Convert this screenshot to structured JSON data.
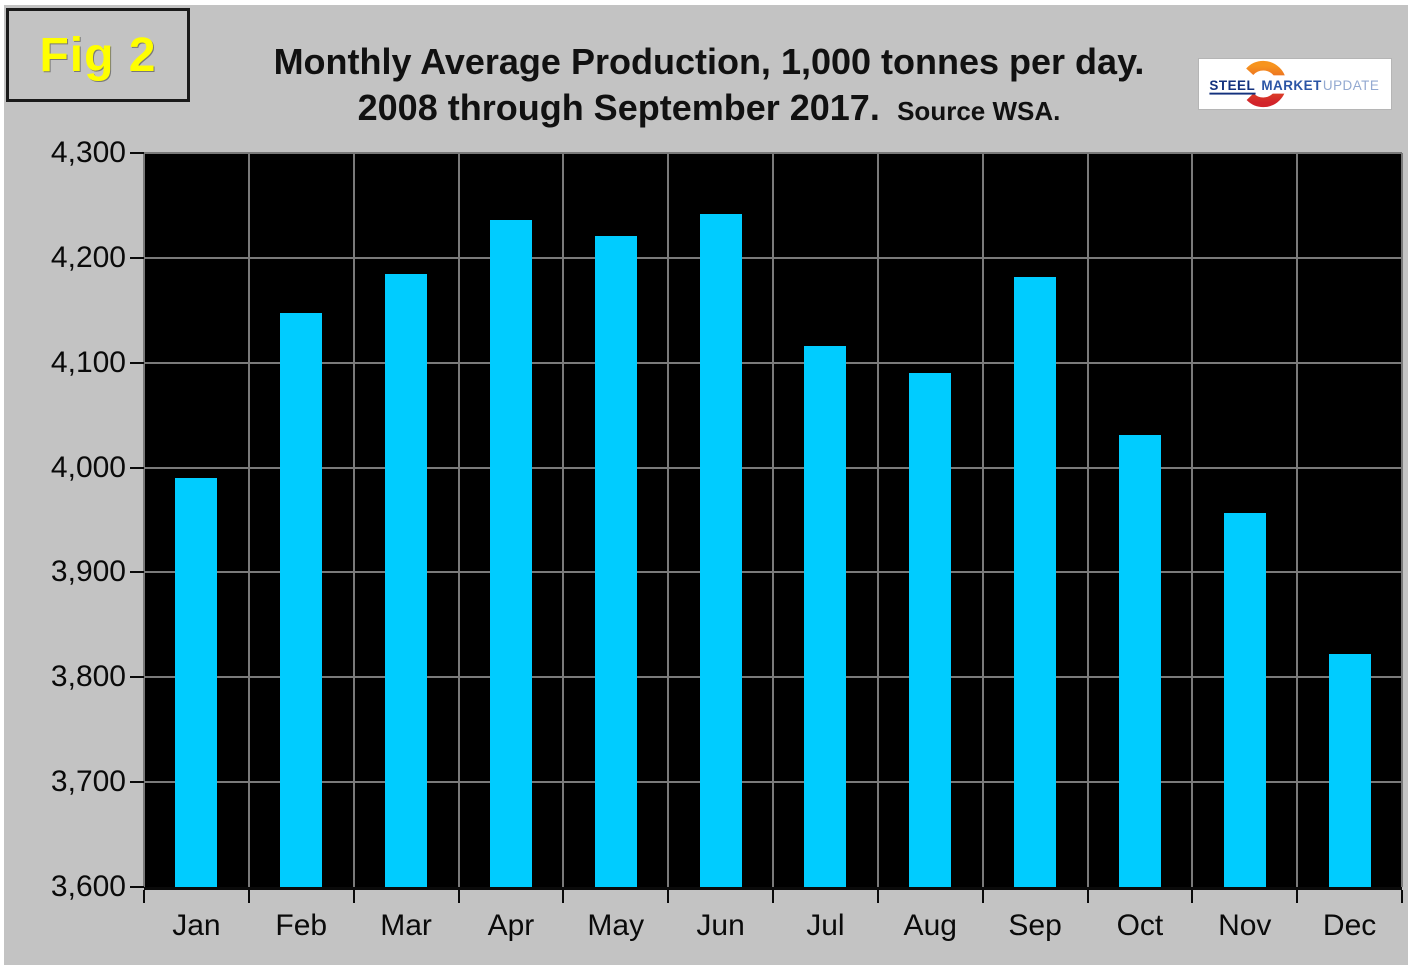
{
  "figure": {
    "label": "Fig 2"
  },
  "title": {
    "line1": "Monthly Average Production, 1,000 tonnes per day.",
    "line2": "2008 through September 2017.",
    "source": "Source WSA."
  },
  "logo": {
    "steel": "STEEL",
    "market": "MARKET",
    "update": "UPDATE"
  },
  "colors": {
    "canvas_bg": "#c3c3c3",
    "plot_bg": "#000000",
    "bar": "#00ccff",
    "gridline": "#7a7a7a",
    "fig_label": "#ffff00",
    "logo_steel": "#14327e",
    "logo_market": "#2b55a5",
    "logo_update": "#93a9d1",
    "logo_swoosh_top": "#f7941e",
    "logo_swoosh_bottom": "#d2232a"
  },
  "chart_data": {
    "type": "bar",
    "title": "Monthly Average Production, 1,000 tonnes per day. 2008 through September 2017.",
    "source": "Source WSA.",
    "unit": "1,000 tonnes per day",
    "categories": [
      "Jan",
      "Feb",
      "Mar",
      "Apr",
      "May",
      "Jun",
      "Jul",
      "Aug",
      "Sep",
      "Oct",
      "Nov",
      "Dec"
    ],
    "values": [
      3990,
      4147,
      4185,
      4236,
      4221,
      4242,
      4116,
      4090,
      4182,
      4031,
      3957,
      3822
    ],
    "ylim": [
      3600,
      4300
    ],
    "yticks": [
      {
        "value": 4300,
        "label": "4,300"
      },
      {
        "value": 4200,
        "label": "4,200"
      },
      {
        "value": 4100,
        "label": "4,100"
      },
      {
        "value": 4000,
        "label": "4,000"
      },
      {
        "value": 3900,
        "label": "3,900"
      },
      {
        "value": 3800,
        "label": "3,800"
      },
      {
        "value": 3700,
        "label": "3,700"
      },
      {
        "value": 3600,
        "label": "3,600"
      }
    ],
    "grid": true,
    "legend": "none"
  }
}
